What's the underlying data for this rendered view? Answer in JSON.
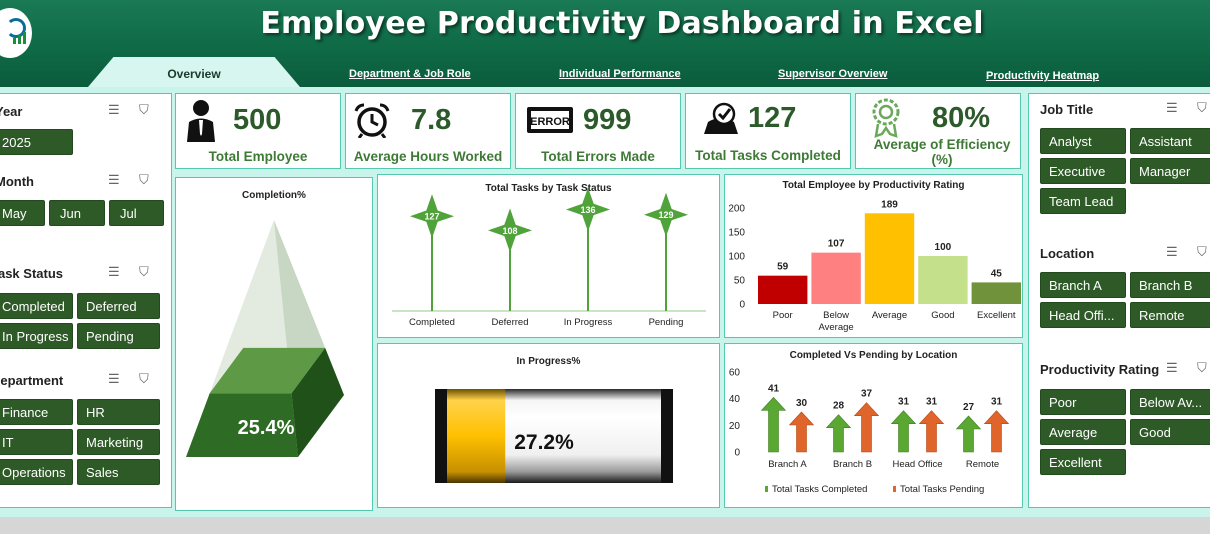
{
  "header": {
    "title": "Employee Productivity Dashboard in Excel",
    "tabs": [
      {
        "label": "Overview"
      },
      {
        "label": "Department & Job Role"
      },
      {
        "label": "Individual Performance"
      },
      {
        "label": "Supervisor Overview"
      },
      {
        "label": "Productivity Heatmap"
      }
    ]
  },
  "left_slicers": {
    "year": {
      "title": "Year",
      "items": [
        "2025"
      ]
    },
    "month": {
      "title": "Month",
      "items": [
        "May",
        "Jun",
        "Jul"
      ]
    },
    "task_status": {
      "title": "Task Status",
      "items": [
        "Completed",
        "Deferred",
        "In Progress",
        "Pending"
      ]
    },
    "department": {
      "title": "Department",
      "items": [
        "Finance",
        "HR",
        "IT",
        "Marketing",
        "Operations",
        "Sales"
      ]
    }
  },
  "right_slicers": {
    "job_title": {
      "title": "Job Title",
      "items": [
        "Analyst",
        "Assistant",
        "Executive",
        "Manager",
        "Team Lead"
      ]
    },
    "location": {
      "title": "Location",
      "items": [
        "Branch A",
        "Branch B",
        "Head Offi...",
        "Remote"
      ]
    },
    "productivity_rating": {
      "title": "Productivity Rating",
      "items": [
        "Poor",
        "Below Av...",
        "Average",
        "Good",
        "Excellent"
      ]
    }
  },
  "kpis": [
    {
      "value": "500",
      "label": "Total Employee",
      "icon": "employee-icon"
    },
    {
      "value": "7.8",
      "label": "Average Hours Worked",
      "icon": "alarm-clock-icon"
    },
    {
      "value": "999",
      "label": "Total Errors Made",
      "icon": "error-banner-icon"
    },
    {
      "value": "127",
      "label": "Total Tasks Completed",
      "icon": "task-check-icon"
    },
    {
      "value": "80%",
      "label": "Average of Efficiency (%)",
      "icon": "efficiency-gear-icon"
    }
  ],
  "colors": {
    "header": "#0f6a46",
    "panel_border": "#55c9b0",
    "chip": "#2e5a27",
    "kpi_text": "#2d5a2a",
    "green_accent": "#4fa33a",
    "orange_accent": "#e0652a",
    "gold": "#ffc000"
  },
  "chart_data": [
    {
      "type": "pyramid",
      "title": "Completion%",
      "value": 25.4,
      "label": "25.4%"
    },
    {
      "type": "lollipop",
      "title": "Total Tasks by Task Status",
      "categories": [
        "Completed",
        "Deferred",
        "In Progress",
        "Pending"
      ],
      "values": [
        127,
        108,
        136,
        129
      ]
    },
    {
      "type": "bar",
      "title": "Total Employee by Productivity Rating",
      "categories": [
        "Poor",
        "Below Average",
        "Average",
        "Good",
        "Excellent"
      ],
      "values": [
        59,
        107,
        189,
        100,
        45
      ],
      "colors": [
        "#c00000",
        "#ff8080",
        "#ffc000",
        "#c5e08a",
        "#70923a"
      ],
      "yticks": [
        "0",
        "50",
        "100",
        "150",
        "200"
      ],
      "ylim": [
        0,
        200
      ]
    },
    {
      "type": "progress",
      "title": "In Progress%",
      "value": 27.2,
      "label": "27.2%"
    },
    {
      "type": "bar",
      "title": "Completed Vs Pending by Location",
      "categories": [
        "Branch A",
        "Branch B",
        "Head Office",
        "Remote"
      ],
      "series": [
        {
          "name": "Total Tasks Completed",
          "values": [
            41,
            28,
            31,
            27
          ]
        },
        {
          "name": "Total Tasks Pending",
          "values": [
            30,
            37,
            31,
            31
          ]
        }
      ],
      "yticks": [
        "0",
        "20",
        "40",
        "60"
      ],
      "ylim": [
        0,
        60
      ]
    }
  ]
}
